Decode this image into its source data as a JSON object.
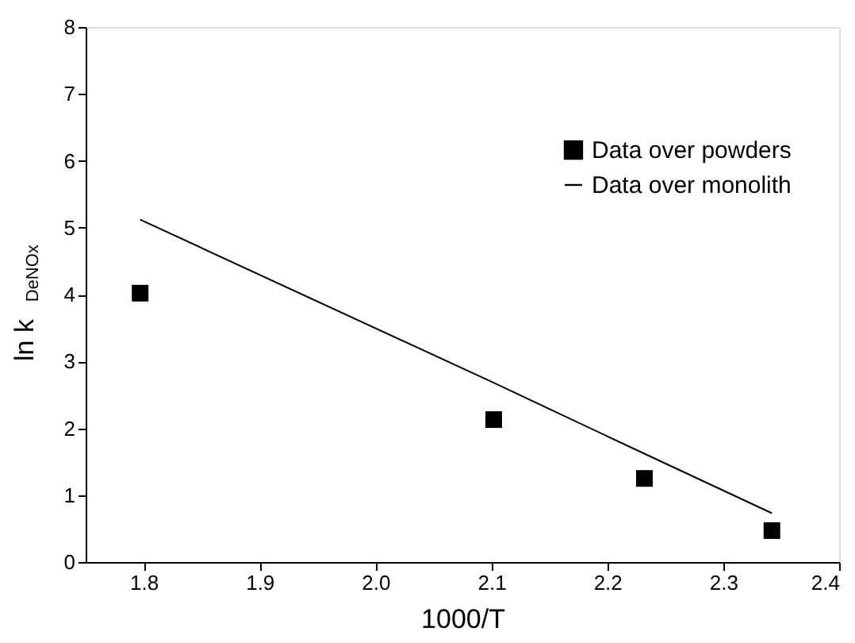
{
  "chart_data": {
    "type": "scatter",
    "xlabel": "1000/T",
    "ylabel": "ln k$_{DeNOx}$",
    "xlim": [
      1.75,
      2.4
    ],
    "xticks": [
      1.8,
      1.9,
      {
        "value": 2.0,
        "label": "2.0"
      },
      2.1,
      2.2,
      2.3,
      2.4
    ],
    "ylim": [
      0,
      8
    ],
    "yticks": [
      0,
      1,
      2,
      3,
      4,
      5,
      6,
      7,
      8
    ],
    "grid": false,
    "legend": "top right",
    "series": [
      {
        "name": "Data over powders",
        "marker": "square",
        "color": "#000000",
        "x": [
          1.797,
          2.102,
          2.232,
          2.342
        ],
        "values": [
          4.02,
          2.13,
          1.25,
          0.47
        ]
      },
      {
        "name": "Data over monolith",
        "type": "line",
        "marker": "none",
        "line_style": "solid",
        "color": "#000000",
        "x": [
          1.797,
          2.102,
          2.232,
          2.342
        ],
        "values": [
          5.12,
          2.68,
          1.62,
          0.73
        ]
      }
    ]
  }
}
